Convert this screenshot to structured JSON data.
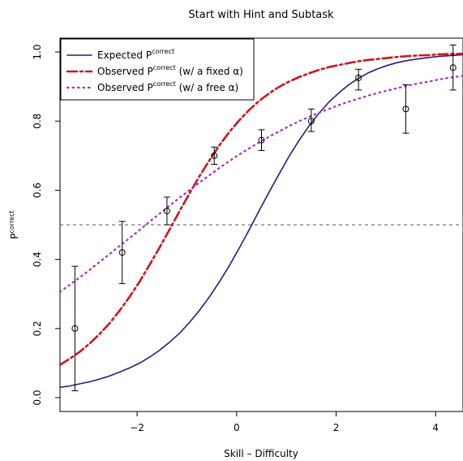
{
  "chart_data": {
    "type": "line",
    "title": "Start with Hint and Subtask",
    "xlabel": "Skill – Difficulty",
    "ylabel": {
      "base": "P",
      "sup": "correct"
    },
    "xlim": [
      -3.55,
      4.55
    ],
    "ylim": [
      -0.04,
      1.04
    ],
    "x_ticks": [
      -2,
      0,
      2,
      4
    ],
    "x_tick_labels": [
      "−2",
      "0",
      "2",
      "4"
    ],
    "y_ticks": [
      0.0,
      0.2,
      0.4,
      0.6,
      0.8,
      1.0
    ],
    "y_tick_labels": [
      "0.0",
      "0.2",
      "0.4",
      "0.6",
      "0.8",
      "1.0"
    ],
    "grid": false,
    "legend_position": "top-left",
    "reference_line": {
      "y": 0.5,
      "style": "dashed",
      "color": "#555555"
    },
    "curves": [
      {
        "label_prefix": "Expected",
        "label_suffix": "",
        "color": "#2e1a7a",
        "style": "solid",
        "x": [
          -3.55,
          -3.35,
          -3.15,
          -2.95,
          -2.75,
          -2.55,
          -2.35,
          -2.15,
          -1.95,
          -1.75,
          -1.55,
          -1.35,
          -1.15,
          -0.95,
          -0.75,
          -0.55,
          -0.35,
          -0.15,
          0.05,
          0.25,
          0.45,
          0.65,
          0.85,
          1.05,
          1.25,
          1.45,
          1.65,
          1.85,
          2.05,
          2.25,
          2.45,
          2.65,
          2.85,
          3.05,
          3.25,
          3.45,
          3.65,
          3.85,
          4.05,
          4.25,
          4.55
        ],
        "y": [
          0.03,
          0.034,
          0.04,
          0.046,
          0.054,
          0.063,
          0.074,
          0.086,
          0.1,
          0.117,
          0.137,
          0.16,
          0.186,
          0.217,
          0.252,
          0.291,
          0.334,
          0.381,
          0.432,
          0.485,
          0.54,
          0.594,
          0.646,
          0.697,
          0.743,
          0.785,
          0.822,
          0.854,
          0.881,
          0.905,
          0.924,
          0.94,
          0.952,
          0.962,
          0.97,
          0.976,
          0.98,
          0.984,
          0.987,
          0.989,
          0.992
        ]
      },
      {
        "label_prefix": "Observed",
        "label_suffix": "(w/ a fixed  α)",
        "color": "#d0141e",
        "style": "dashdot",
        "x": [
          -3.55,
          -3.35,
          -3.15,
          -2.95,
          -2.75,
          -2.55,
          -2.35,
          -2.15,
          -1.95,
          -1.75,
          -1.55,
          -1.35,
          -1.15,
          -0.95,
          -0.75,
          -0.55,
          -0.35,
          -0.15,
          0.05,
          0.25,
          0.45,
          0.65,
          0.85,
          1.05,
          1.25,
          1.45,
          1.65,
          1.85,
          2.05,
          2.25,
          2.45,
          2.65,
          2.85,
          3.05,
          3.25,
          3.45,
          3.65,
          3.85,
          4.05,
          4.25,
          4.55
        ],
        "y": [
          0.095,
          0.113,
          0.133,
          0.157,
          0.185,
          0.216,
          0.252,
          0.292,
          0.336,
          0.384,
          0.434,
          0.486,
          0.539,
          0.59,
          0.64,
          0.686,
          0.729,
          0.768,
          0.802,
          0.832,
          0.858,
          0.88,
          0.899,
          0.914,
          0.927,
          0.938,
          0.948,
          0.956,
          0.962,
          0.968,
          0.973,
          0.977,
          0.98,
          0.983,
          0.986,
          0.988,
          0.99,
          0.991,
          0.993,
          0.994,
          0.995
        ]
      },
      {
        "label_prefix": "Observed",
        "label_suffix": "(w/ a free   α)",
        "color": "#a12cc4",
        "style": "dotted",
        "x": [
          -3.55,
          -3.35,
          -3.15,
          -2.95,
          -2.75,
          -2.55,
          -2.35,
          -2.15,
          -1.95,
          -1.75,
          -1.55,
          -1.35,
          -1.15,
          -0.95,
          -0.75,
          -0.55,
          -0.35,
          -0.15,
          0.05,
          0.25,
          0.45,
          0.65,
          0.85,
          1.05,
          1.25,
          1.45,
          1.65,
          1.85,
          2.05,
          2.25,
          2.45,
          2.65,
          2.85,
          3.05,
          3.25,
          3.45,
          3.65,
          3.85,
          4.05,
          4.25,
          4.55
        ],
        "y": [
          0.306,
          0.327,
          0.348,
          0.37,
          0.393,
          0.416,
          0.439,
          0.462,
          0.485,
          0.509,
          0.532,
          0.555,
          0.578,
          0.6,
          0.622,
          0.643,
          0.664,
          0.684,
          0.703,
          0.721,
          0.738,
          0.755,
          0.77,
          0.785,
          0.799,
          0.812,
          0.824,
          0.835,
          0.846,
          0.856,
          0.865,
          0.874,
          0.882,
          0.889,
          0.896,
          0.903,
          0.909,
          0.914,
          0.92,
          0.925,
          0.931
        ]
      }
    ],
    "points": {
      "x": [
        -3.25,
        -2.3,
        -1.4,
        -0.45,
        0.5,
        1.5,
        2.45,
        3.4,
        4.35
      ],
      "y": [
        0.2,
        0.42,
        0.54,
        0.7,
        0.745,
        0.8,
        0.925,
        0.835,
        0.955
      ],
      "lower": [
        0.02,
        0.33,
        0.5,
        0.675,
        0.715,
        0.77,
        0.89,
        0.765,
        0.89
      ],
      "upper": [
        0.38,
        0.51,
        0.58,
        0.725,
        0.775,
        0.835,
        0.95,
        0.905,
        1.02
      ]
    }
  }
}
